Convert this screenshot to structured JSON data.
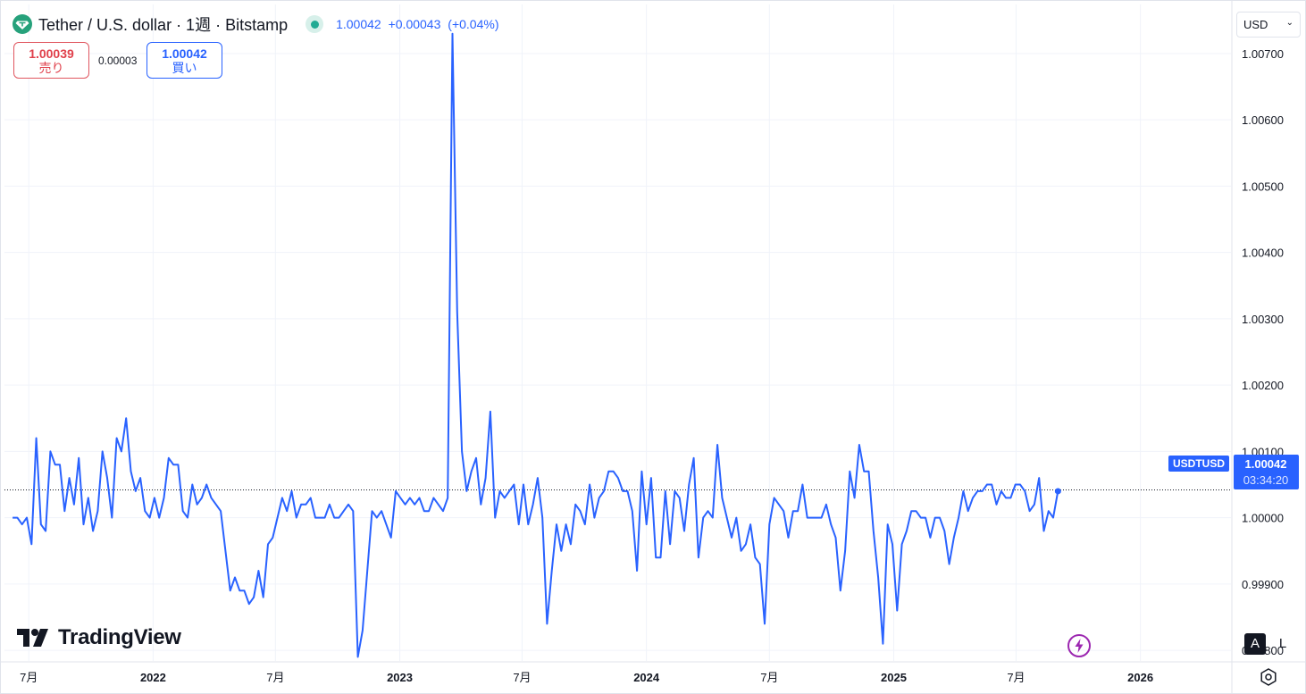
{
  "header": {
    "title": "Tether / U.S. dollar · 1週 · Bitstamp",
    "price": "1.00042",
    "change": "+0.00043",
    "change_pct": "(+0.04%)"
  },
  "quotes": {
    "sell_price": "1.00039",
    "sell_label": "売り",
    "spread": "0.00003",
    "buy_price": "1.00042",
    "buy_label": "買い"
  },
  "currency_selector": {
    "value": "USD"
  },
  "price_label": {
    "symbol": "USDTUSD",
    "price": "1.00042",
    "countdown": "03:34:20"
  },
  "brand": {
    "name": "TradingView"
  },
  "scale_buttons": {
    "auto": "A",
    "log": "L"
  },
  "colors": {
    "line": "#2962ff",
    "positive": "#22ab94",
    "sell": "#e0414c",
    "grid": "#f0f3fa"
  },
  "icons": [
    "tether-logo-icon",
    "market-status-icon",
    "chevron-down-icon",
    "tradingview-logo-icon",
    "lightning-icon",
    "settings-icon"
  ],
  "chart_data": {
    "type": "line",
    "symbol": "USDTUSD",
    "interval": "1W",
    "y_ticks": [
      "1.00700",
      "1.00600",
      "1.00500",
      "1.00400",
      "1.00300",
      "1.00200",
      "1.00100",
      "1.00000",
      "0.99900",
      "0.99800"
    ],
    "y_tick_values": [
      1.007,
      1.006,
      1.005,
      1.004,
      1.003,
      1.002,
      1.001,
      1.0,
      0.999,
      0.998
    ],
    "ylim": [
      0.99784,
      1.00774
    ],
    "x_ticks": [
      "7月",
      "2022",
      "7月",
      "2023",
      "7月",
      "2024",
      "7月",
      "2025",
      "7月",
      "2026"
    ],
    "x_tick_dates": [
      "2021-07-01",
      "2022-01-01",
      "2022-07-01",
      "2023-01-01",
      "2023-07-01",
      "2024-01-01",
      "2024-07-01",
      "2025-01-01",
      "2025-07-01",
      "2026-01-01"
    ],
    "xlim": [
      "2021-05-26",
      "2026-05-15"
    ],
    "last_price": 1.00042,
    "series": [
      {
        "points": [
          [
            "2021-06-07",
            1.0
          ],
          [
            "2021-06-14",
            1.0
          ],
          [
            "2021-06-21",
            0.9999
          ],
          [
            "2021-06-28",
            1.0
          ],
          [
            "2021-07-05",
            0.9996
          ],
          [
            "2021-07-12",
            1.0012
          ],
          [
            "2021-07-19",
            0.9999
          ],
          [
            "2021-07-26",
            0.9998
          ],
          [
            "2021-08-02",
            1.001
          ],
          [
            "2021-08-09",
            1.0008
          ],
          [
            "2021-08-16",
            1.0008
          ],
          [
            "2021-08-23",
            1.0001
          ],
          [
            "2021-08-30",
            1.0006
          ],
          [
            "2021-09-06",
            1.0002
          ],
          [
            "2021-09-13",
            1.0009
          ],
          [
            "2021-09-20",
            0.9999
          ],
          [
            "2021-09-27",
            1.0003
          ],
          [
            "2021-10-04",
            0.9998
          ],
          [
            "2021-10-11",
            1.0001
          ],
          [
            "2021-10-18",
            1.001
          ],
          [
            "2021-10-25",
            1.0006
          ],
          [
            "2021-11-01",
            1.0
          ],
          [
            "2021-11-08",
            1.0012
          ],
          [
            "2021-11-15",
            1.001
          ],
          [
            "2021-11-22",
            1.0015
          ],
          [
            "2021-11-29",
            1.0007
          ],
          [
            "2021-12-06",
            1.0004
          ],
          [
            "2021-12-13",
            1.0006
          ],
          [
            "2021-12-20",
            1.0001
          ],
          [
            "2021-12-27",
            1.0
          ],
          [
            "2022-01-03",
            1.0003
          ],
          [
            "2022-01-10",
            1.0
          ],
          [
            "2022-01-17",
            1.0003
          ],
          [
            "2022-01-24",
            1.0009
          ],
          [
            "2022-01-31",
            1.0008
          ],
          [
            "2022-02-07",
            1.0008
          ],
          [
            "2022-02-14",
            1.0001
          ],
          [
            "2022-02-21",
            1.0
          ],
          [
            "2022-02-28",
            1.0005
          ],
          [
            "2022-03-07",
            1.0002
          ],
          [
            "2022-03-14",
            1.0003
          ],
          [
            "2022-03-21",
            1.0005
          ],
          [
            "2022-03-28",
            1.0003
          ],
          [
            "2022-04-04",
            1.0002
          ],
          [
            "2022-04-11",
            1.0001
          ],
          [
            "2022-04-18",
            0.9995
          ],
          [
            "2022-04-25",
            0.9989
          ],
          [
            "2022-05-02",
            0.9991
          ],
          [
            "2022-05-09",
            0.9989
          ],
          [
            "2022-05-16",
            0.9989
          ],
          [
            "2022-05-23",
            0.9987
          ],
          [
            "2022-05-30",
            0.9988
          ],
          [
            "2022-06-06",
            0.9992
          ],
          [
            "2022-06-13",
            0.9988
          ],
          [
            "2022-06-20",
            0.9996
          ],
          [
            "2022-06-27",
            0.9997
          ],
          [
            "2022-07-04",
            1.0
          ],
          [
            "2022-07-11",
            1.0003
          ],
          [
            "2022-07-18",
            1.0001
          ],
          [
            "2022-07-25",
            1.0004
          ],
          [
            "2022-08-01",
            1.0
          ],
          [
            "2022-08-08",
            1.0002
          ],
          [
            "2022-08-15",
            1.0002
          ],
          [
            "2022-08-22",
            1.0003
          ],
          [
            "2022-08-29",
            1.0
          ],
          [
            "2022-09-05",
            1.0
          ],
          [
            "2022-09-12",
            1.0
          ],
          [
            "2022-09-19",
            1.0002
          ],
          [
            "2022-09-26",
            1.0
          ],
          [
            "2022-10-03",
            1.0
          ],
          [
            "2022-10-10",
            1.0001
          ],
          [
            "2022-10-17",
            1.0002
          ],
          [
            "2022-10-24",
            1.0001
          ],
          [
            "2022-10-31",
            0.9979
          ],
          [
            "2022-11-07",
            0.9983
          ],
          [
            "2022-11-14",
            0.9992
          ],
          [
            "2022-11-21",
            1.0001
          ],
          [
            "2022-11-28",
            1.0
          ],
          [
            "2022-12-05",
            1.0001
          ],
          [
            "2022-12-12",
            0.9999
          ],
          [
            "2022-12-19",
            0.9997
          ],
          [
            "2022-12-26",
            1.0004
          ],
          [
            "2023-01-02",
            1.0003
          ],
          [
            "2023-01-09",
            1.0002
          ],
          [
            "2023-01-16",
            1.0003
          ],
          [
            "2023-01-23",
            1.0002
          ],
          [
            "2023-01-30",
            1.0003
          ],
          [
            "2023-02-06",
            1.0001
          ],
          [
            "2023-02-13",
            1.0001
          ],
          [
            "2023-02-20",
            1.0003
          ],
          [
            "2023-02-27",
            1.0002
          ],
          [
            "2023-03-06",
            1.0001
          ],
          [
            "2023-03-13",
            1.0003
          ],
          [
            "2023-03-20",
            1.0073
          ],
          [
            "2023-03-27",
            1.0031
          ],
          [
            "2023-04-03",
            1.001
          ],
          [
            "2023-04-10",
            1.0004
          ],
          [
            "2023-04-17",
            1.0007
          ],
          [
            "2023-04-24",
            1.0009
          ],
          [
            "2023-05-01",
            1.0002
          ],
          [
            "2023-05-08",
            1.0006
          ],
          [
            "2023-05-15",
            1.0016
          ],
          [
            "2023-05-22",
            1.0
          ],
          [
            "2023-05-29",
            1.0004
          ],
          [
            "2023-06-05",
            1.0003
          ],
          [
            "2023-06-12",
            1.0004
          ],
          [
            "2023-06-19",
            1.0005
          ],
          [
            "2023-06-26",
            0.9999
          ],
          [
            "2023-07-03",
            1.0005
          ],
          [
            "2023-07-10",
            0.9999
          ],
          [
            "2023-07-17",
            1.0002
          ],
          [
            "2023-07-24",
            1.0006
          ],
          [
            "2023-07-31",
            1.0
          ],
          [
            "2023-08-07",
            0.9984
          ],
          [
            "2023-08-14",
            0.9992
          ],
          [
            "2023-08-21",
            0.9999
          ],
          [
            "2023-08-28",
            0.9995
          ],
          [
            "2023-09-04",
            0.9999
          ],
          [
            "2023-09-11",
            0.9996
          ],
          [
            "2023-09-18",
            1.0002
          ],
          [
            "2023-09-25",
            1.0001
          ],
          [
            "2023-10-02",
            0.9999
          ],
          [
            "2023-10-09",
            1.0005
          ],
          [
            "2023-10-16",
            1.0
          ],
          [
            "2023-10-23",
            1.0003
          ],
          [
            "2023-10-30",
            1.0004
          ],
          [
            "2023-11-06",
            1.0007
          ],
          [
            "2023-11-13",
            1.0007
          ],
          [
            "2023-11-20",
            1.0006
          ],
          [
            "2023-11-27",
            1.0004
          ],
          [
            "2023-12-04",
            1.0004
          ],
          [
            "2023-12-11",
            1.0001
          ],
          [
            "2023-12-18",
            0.9992
          ],
          [
            "2023-12-25",
            1.0007
          ],
          [
            "2024-01-01",
            0.9999
          ],
          [
            "2024-01-08",
            1.0006
          ],
          [
            "2024-01-15",
            0.9994
          ],
          [
            "2024-01-22",
            0.9994
          ],
          [
            "2024-01-29",
            1.0004
          ],
          [
            "2024-02-05",
            0.9996
          ],
          [
            "2024-02-12",
            1.0004
          ],
          [
            "2024-02-19",
            1.0003
          ],
          [
            "2024-02-26",
            0.9998
          ],
          [
            "2024-03-04",
            1.0005
          ],
          [
            "2024-03-11",
            1.0009
          ],
          [
            "2024-03-18",
            0.9994
          ],
          [
            "2024-03-25",
            1.0
          ],
          [
            "2024-04-01",
            1.0001
          ],
          [
            "2024-04-08",
            1.0
          ],
          [
            "2024-04-15",
            1.0011
          ],
          [
            "2024-04-22",
            1.0003
          ],
          [
            "2024-04-29",
            1.0
          ],
          [
            "2024-05-06",
            0.9997
          ],
          [
            "2024-05-13",
            1.0
          ],
          [
            "2024-05-20",
            0.9995
          ],
          [
            "2024-05-27",
            0.9996
          ],
          [
            "2024-06-03",
            0.9999
          ],
          [
            "2024-06-10",
            0.9994
          ],
          [
            "2024-06-17",
            0.9993
          ],
          [
            "2024-06-24",
            0.9984
          ],
          [
            "2024-07-01",
            0.9999
          ],
          [
            "2024-07-08",
            1.0003
          ],
          [
            "2024-07-15",
            1.0002
          ],
          [
            "2024-07-22",
            1.0001
          ],
          [
            "2024-07-29",
            0.9997
          ],
          [
            "2024-08-05",
            1.0001
          ],
          [
            "2024-08-12",
            1.0001
          ],
          [
            "2024-08-19",
            1.0005
          ],
          [
            "2024-08-26",
            1.0
          ],
          [
            "2024-09-02",
            1.0
          ],
          [
            "2024-09-09",
            1.0
          ],
          [
            "2024-09-16",
            1.0
          ],
          [
            "2024-09-23",
            1.0002
          ],
          [
            "2024-09-30",
            0.9999
          ],
          [
            "2024-10-07",
            0.9997
          ],
          [
            "2024-10-14",
            0.9989
          ],
          [
            "2024-10-21",
            0.9995
          ],
          [
            "2024-10-28",
            1.0007
          ],
          [
            "2024-11-04",
            1.0003
          ],
          [
            "2024-11-11",
            1.0011
          ],
          [
            "2024-11-18",
            1.0007
          ],
          [
            "2024-11-25",
            1.0007
          ],
          [
            "2024-12-02",
            0.9998
          ],
          [
            "2024-12-09",
            0.9991
          ],
          [
            "2024-12-16",
            0.9981
          ],
          [
            "2024-12-23",
            0.9999
          ],
          [
            "2024-12-30",
            0.9996
          ],
          [
            "2025-01-06",
            0.9986
          ],
          [
            "2025-01-13",
            0.9996
          ],
          [
            "2025-01-20",
            0.9998
          ],
          [
            "2025-01-27",
            1.0001
          ],
          [
            "2025-02-03",
            1.0001
          ],
          [
            "2025-02-10",
            1.0
          ],
          [
            "2025-02-17",
            1.0
          ],
          [
            "2025-02-24",
            0.9997
          ],
          [
            "2025-03-03",
            1.0
          ],
          [
            "2025-03-10",
            1.0
          ],
          [
            "2025-03-17",
            0.9998
          ],
          [
            "2025-03-24",
            0.9993
          ],
          [
            "2025-03-31",
            0.9997
          ],
          [
            "2025-04-07",
            1.0
          ],
          [
            "2025-04-14",
            1.0004
          ],
          [
            "2025-04-21",
            1.0001
          ],
          [
            "2025-04-28",
            1.0003
          ],
          [
            "2025-05-05",
            1.0004
          ],
          [
            "2025-05-12",
            1.0004
          ],
          [
            "2025-05-19",
            1.0005
          ],
          [
            "2025-05-26",
            1.0005
          ],
          [
            "2025-06-02",
            1.0002
          ],
          [
            "2025-06-09",
            1.0004
          ],
          [
            "2025-06-16",
            1.0003
          ],
          [
            "2025-06-23",
            1.0003
          ],
          [
            "2025-06-30",
            1.0005
          ],
          [
            "2025-07-07",
            1.0005
          ],
          [
            "2025-07-14",
            1.0004
          ],
          [
            "2025-07-21",
            1.0001
          ],
          [
            "2025-07-28",
            1.0002
          ],
          [
            "2025-08-04",
            1.0006
          ],
          [
            "2025-08-11",
            0.9998
          ],
          [
            "2025-08-18",
            1.0001
          ],
          [
            "2025-08-25",
            1.0
          ],
          [
            "2025-09-01",
            1.0004
          ]
        ]
      }
    ]
  }
}
